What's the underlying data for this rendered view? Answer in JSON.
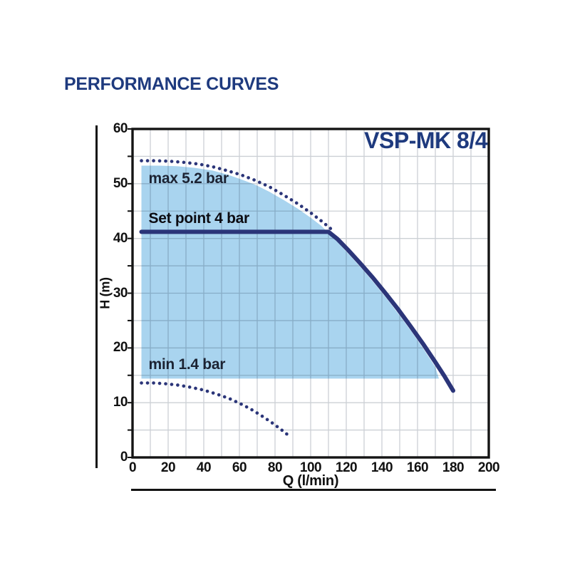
{
  "title": "PERFORMANCE CURVES",
  "chart_data": {
    "type": "line",
    "title": "PERFORMANCE CURVES",
    "model": "VSP-MK 8/4",
    "xlabel": "Q (l/min)",
    "ylabel": "H (m)",
    "xlim": [
      0,
      200
    ],
    "ylim": [
      0,
      60
    ],
    "x_grid_step": 10,
    "y_grid_step": 5,
    "x_ticks": [
      0,
      20,
      40,
      60,
      80,
      100,
      120,
      140,
      160,
      180,
      200
    ],
    "y_ticks": [
      0,
      10,
      20,
      30,
      40,
      50,
      60
    ],
    "grid": true,
    "colors": {
      "curve": "#2b3579",
      "frame": "#141414",
      "grid": "#ccd0d5",
      "shade": "#a9d4ef",
      "accent_text": "#1e3a7e"
    },
    "annotations": [
      {
        "text": "max 5.2 bar",
        "x": 9,
        "y": 52.3,
        "bold": false
      },
      {
        "text": "Set point 4 bar",
        "x": 9,
        "y": 45.0,
        "bold": true
      },
      {
        "text": "min 1.4 bar",
        "x": 9,
        "y": 18.3,
        "bold": false
      }
    ],
    "series": [
      {
        "name": "max 5.2 bar curve",
        "style": "dotted",
        "points": [
          [
            5,
            54.2
          ],
          [
            13,
            54.2
          ],
          [
            21,
            54.1
          ],
          [
            29,
            53.9
          ],
          [
            37,
            53.6
          ],
          [
            45,
            53.1
          ],
          [
            53,
            52.4
          ],
          [
            61,
            51.6
          ],
          [
            69,
            50.6
          ],
          [
            77,
            49.4
          ],
          [
            85,
            47.9
          ],
          [
            93,
            46.3
          ],
          [
            100,
            44.7
          ],
          [
            106,
            43.2
          ],
          [
            112,
            41.6
          ]
        ]
      },
      {
        "name": "set point 4 bar curve",
        "style": "solid",
        "points": [
          [
            5,
            41.2
          ],
          [
            110,
            41.2
          ],
          [
            115,
            39.9
          ],
          [
            121,
            37.9
          ],
          [
            128,
            35.4
          ],
          [
            135,
            32.8
          ],
          [
            142,
            30.0
          ],
          [
            149,
            27.1
          ],
          [
            156,
            24.0
          ],
          [
            163,
            20.8
          ],
          [
            170,
            17.4
          ],
          [
            175,
            14.9
          ],
          [
            180,
            12.2
          ]
        ]
      },
      {
        "name": "min 1.4 bar curve",
        "style": "dotted",
        "points": [
          [
            5,
            13.6
          ],
          [
            12,
            13.6
          ],
          [
            19,
            13.45
          ],
          [
            26,
            13.2
          ],
          [
            33,
            12.8
          ],
          [
            40,
            12.3
          ],
          [
            47,
            11.6
          ],
          [
            54,
            10.8
          ],
          [
            60,
            9.9
          ],
          [
            66,
            8.9
          ],
          [
            72,
            7.7
          ],
          [
            78,
            6.4
          ],
          [
            83,
            5.2
          ],
          [
            88,
            3.9
          ]
        ]
      }
    ],
    "envelope": {
      "name": "operating range shade",
      "fill": "#a9d4ef",
      "points": [
        [
          5,
          14.4
        ],
        [
          5,
          53.3
        ],
        [
          15,
          53.3
        ],
        [
          25,
          53.2
        ],
        [
          35,
          52.9
        ],
        [
          45,
          52.4
        ],
        [
          53,
          51.7
        ],
        [
          61,
          50.8
        ],
        [
          69,
          49.8
        ],
        [
          77,
          48.5
        ],
        [
          85,
          47.0
        ],
        [
          93,
          45.4
        ],
        [
          100,
          43.8
        ],
        [
          106,
          42.3
        ],
        [
          111,
          40.7
        ],
        [
          116,
          39.0
        ],
        [
          122,
          36.9
        ],
        [
          129,
          34.4
        ],
        [
          136,
          31.7
        ],
        [
          143,
          28.9
        ],
        [
          150,
          25.9
        ],
        [
          157,
          22.8
        ],
        [
          164,
          19.5
        ],
        [
          170,
          16.5
        ],
        [
          172,
          14.4
        ]
      ]
    }
  }
}
